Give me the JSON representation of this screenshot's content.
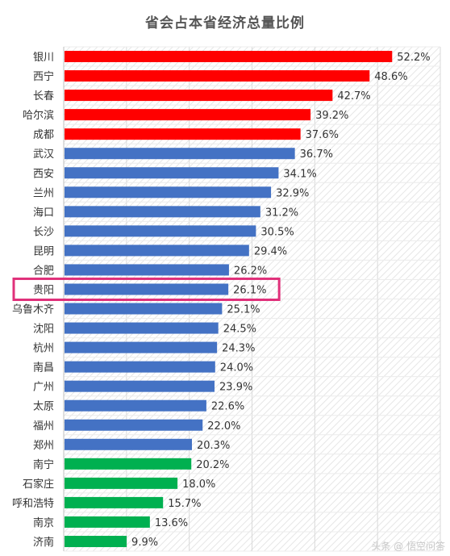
{
  "colors": {
    "red": "#ff0000",
    "blue": "#4472c4",
    "green": "#00b050",
    "highlight_box": "#e0307a",
    "grid": "#d9d9d9",
    "hatch": "#e6e6e6",
    "label": "#333333"
  },
  "chart_data": {
    "type": "bar",
    "orientation": "horizontal",
    "title": "省会占本省经济总量比例",
    "grid": true,
    "highlighted_category": "贵阳",
    "categories": [
      "银川",
      "西宁",
      "长春",
      "哈尔滨",
      "成都",
      "武汉",
      "西安",
      "兰州",
      "海口",
      "长沙",
      "昆明",
      "合肥",
      "贵阳",
      "乌鲁木齐",
      "沈阳",
      "杭州",
      "南昌",
      "广州",
      "太原",
      "福州",
      "郑州",
      "南宁",
      "石家庄",
      "呼和浩特",
      "南京",
      "济南"
    ],
    "values": [
      52.2,
      48.6,
      42.7,
      39.2,
      37.6,
      36.7,
      34.1,
      32.9,
      31.2,
      30.5,
      29.4,
      26.2,
      26.1,
      25.1,
      24.5,
      24.3,
      24.0,
      23.9,
      22.6,
      22.0,
      20.3,
      20.2,
      18.0,
      15.7,
      13.6,
      9.9
    ],
    "value_labels": [
      "52.2%",
      "48.6%",
      "42.7%",
      "39.2%",
      "37.6%",
      "36.7%",
      "34.1%",
      "32.9%",
      "31.2%",
      "30.5%",
      "29.4%",
      "26.2%",
      "26.1%",
      "25.1%",
      "24.5%",
      "24.3%",
      "24.0%",
      "23.9%",
      "22.6%",
      "22.0%",
      "20.3%",
      "20.2%",
      "18.0%",
      "15.7%",
      "13.6%",
      "9.9%"
    ],
    "bar_colors": [
      "red",
      "red",
      "red",
      "red",
      "red",
      "blue",
      "blue",
      "blue",
      "blue",
      "blue",
      "blue",
      "blue",
      "blue",
      "blue",
      "blue",
      "blue",
      "blue",
      "blue",
      "blue",
      "blue",
      "blue",
      "green",
      "green",
      "green",
      "green",
      "green"
    ],
    "xlim": [
      0,
      60
    ]
  },
  "watermark": "头条 @ 悟空问答"
}
